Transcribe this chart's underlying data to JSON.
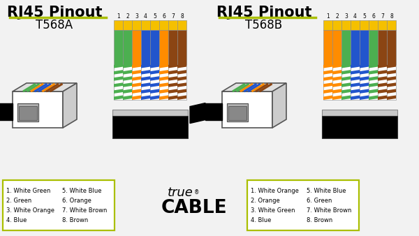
{
  "bg_color": "#f2f2f2",
  "title_A": "RJ45 Pinout",
  "subtitle_A": "T568A",
  "title_B": "RJ45 Pinout",
  "subtitle_B": "T568B",
  "underline_color": "#aabf00",
  "legend_border_color": "#aabf00",
  "legend_A_col1": [
    "1. White Green",
    "2. Green",
    "3. White Orange",
    "4. Blue"
  ],
  "legend_A_col2": [
    "5. White Blue",
    "6. Orange",
    "7. White Brown",
    "8. Brown"
  ],
  "legend_B_col1": [
    "1. White Orange",
    "2. Orange",
    "3. White Green",
    "4. Blue"
  ],
  "legend_B_col2": [
    "5. White Blue",
    "6. Green",
    "7. White Brown",
    "8. Brown"
  ],
  "wire_A_top": [
    "#f5c000",
    "#f5c000",
    "#f5c000",
    "#f5c000",
    "#f5c000",
    "#f5c000",
    "#f5c000",
    "#f5c000"
  ],
  "wire_A_solid": [
    "#4caf50",
    "#4caf50",
    "#ff8c00",
    "#2255cc",
    "#2255cc",
    "#ff8c00",
    "#8b4513",
    "#8b4513"
  ],
  "wire_A_stripe": [
    "#4caf50",
    "#4caf50",
    "#ff8c00",
    "#2255cc",
    "#2255cc",
    "#ff8c00",
    "#8b4513",
    "#8b4513"
  ],
  "wire_B_solid": [
    "#ff8c00",
    "#ff8c00",
    "#4caf50",
    "#2255cc",
    "#2255cc",
    "#4caf50",
    "#8b4513",
    "#8b4513"
  ],
  "wire_B_stripe": [
    "#ff8c00",
    "#ff8c00",
    "#4caf50",
    "#2255cc",
    "#2255cc",
    "#4caf50",
    "#8b4513",
    "#8b4513"
  ]
}
